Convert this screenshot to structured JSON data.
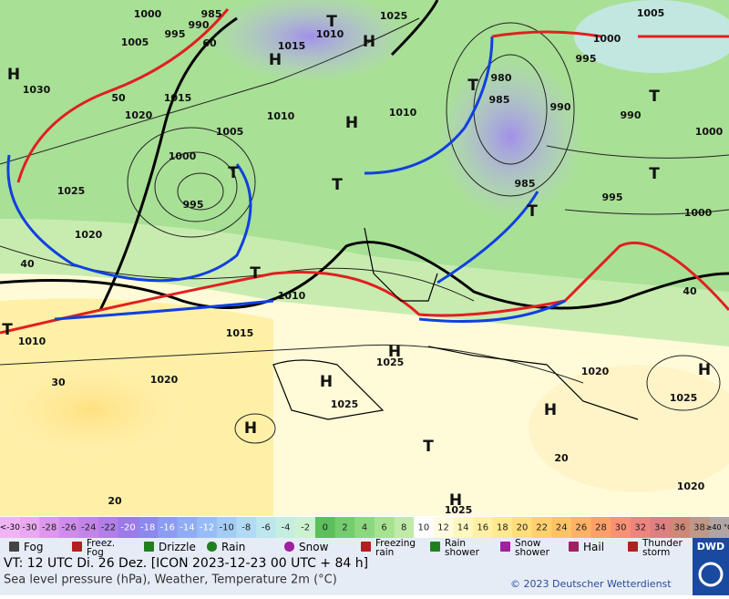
{
  "map": {
    "labels": [
      "1000",
      "985",
      "995",
      "990",
      "1005",
      "60",
      "1015",
      "1030",
      "1020",
      "1005",
      "1000",
      "995",
      "1025",
      "1020",
      "1010",
      "1015",
      "1010",
      "1020",
      "1025",
      "1025",
      "1020",
      "1025",
      "1025",
      "1020",
      "1015",
      "1010",
      "1025",
      "1010",
      "1010",
      "980",
      "985",
      "990",
      "995",
      "1000",
      "1005",
      "990",
      "1000",
      "995",
      "1000",
      "985",
      "50",
      "40",
      "30",
      "20",
      "40",
      "20",
      "H",
      "H",
      "H",
      "H",
      "T",
      "T",
      "T",
      "T",
      "T",
      "T",
      "T",
      "T",
      "H",
      "H",
      "H",
      "H",
      "H",
      "T",
      "H",
      "T"
    ]
  },
  "scale": {
    "low": "<-30",
    "high": "≥40 °C",
    "values": [
      -30,
      -28,
      -26,
      -24,
      -22,
      -20,
      -18,
      -16,
      -14,
      -12,
      -10,
      -8,
      -6,
      -4,
      -2,
      0,
      2,
      4,
      6,
      8,
      10,
      12,
      14,
      16,
      18,
      20,
      22,
      24,
      26,
      28,
      30,
      32,
      34,
      36,
      38
    ],
    "colors": [
      "#e9a8ef",
      "#dc98ec",
      "#cf8cea",
      "#c384e8",
      "#b27ee8",
      "#9c7ae8",
      "#8c88ee",
      "#8c9cf2",
      "#90acf4",
      "#98bdf6",
      "#a4ccf6",
      "#b2daf4",
      "#bde6ee",
      "#c6eee0",
      "#ccf2d2",
      "#5cbf5c",
      "#74cc6e",
      "#8cd87e",
      "#a6e290",
      "#bfeaa8",
      "#fdfdfd",
      "#fffbe0",
      "#fff6c0",
      "#fff0a4",
      "#ffe88e",
      "#ffde7c",
      "#ffd06c",
      "#ffc264",
      "#ffb264",
      "#ffa068",
      "#fa9074",
      "#ee8480",
      "#de8082",
      "#ce8878",
      "#c09888"
    ],
    "low_color": "#f0b4f4",
    "high_color": "#b0a4a4"
  },
  "legend": [
    "Fog",
    "Freez.\nFog",
    "Drizzle",
    "Rain",
    "Snow",
    "Freezing\nrain",
    "Rain\nshower",
    "Snow\nshower",
    "Hail",
    "Thunder\nstorm"
  ],
  "footer": {
    "valid": "VT: 12 UTC Di.  26 Dez. [ICON 2023-12-23  00 UTC + 84 h]",
    "subtitle": "Sea level pressure (hPa), Weather, Temperature 2m (°C)",
    "copyright": "© 2023 Deutscher Wetterdienst",
    "logo": "DWD"
  }
}
